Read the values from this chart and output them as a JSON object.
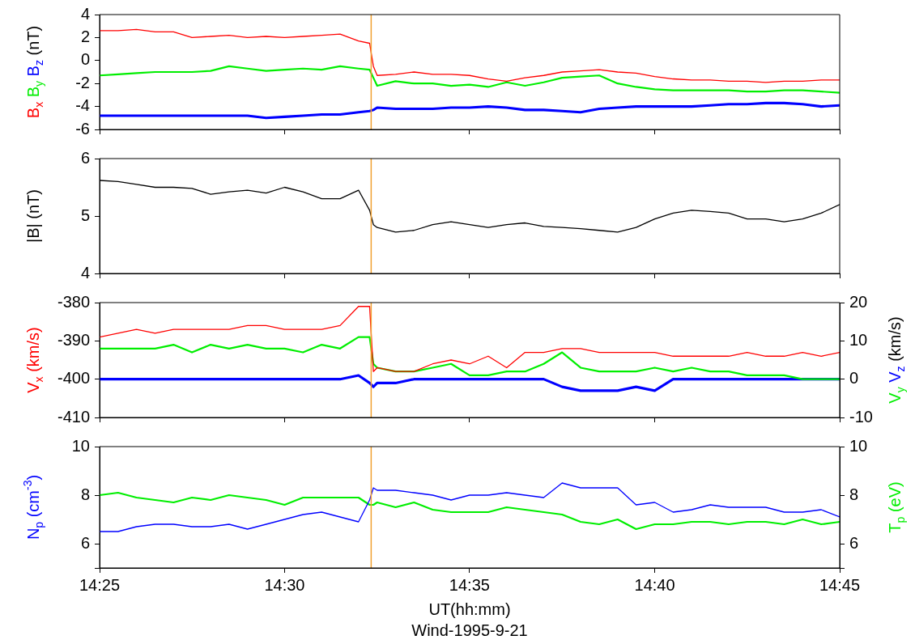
{
  "chart_data": [
    {
      "type": "line",
      "ylabel": "(nT)",
      "tick_labels": "y",
      "x": [
        14.4167,
        14.425,
        14.4333,
        14.4417,
        14.45,
        14.4583,
        14.4667,
        14.475,
        14.4833,
        14.4917,
        14.5,
        14.5083,
        14.5167,
        14.525,
        14.5333,
        14.5383,
        14.54,
        14.5417,
        14.55,
        14.5583,
        14.5667,
        14.575,
        14.5833,
        14.5917,
        14.6,
        14.6083,
        14.6167,
        14.625,
        14.6333,
        14.6417,
        14.65,
        14.6583,
        14.6667,
        14.675,
        14.6833,
        14.6917,
        14.7,
        14.7083,
        14.7167,
        14.725,
        14.7333,
        14.7417,
        14.75
      ],
      "xlim": [
        14.4167,
        14.75
      ],
      "xticks": [
        {
          "value": 14.4167,
          "label": null
        },
        {
          "value": 14.5,
          "label": null
        },
        {
          "value": 14.5833,
          "label": null
        },
        {
          "value": 14.6667,
          "label": null
        },
        {
          "value": 14.75,
          "label": null
        }
      ],
      "ylim": [
        -6,
        4
      ],
      "yticks": [
        -6,
        -4,
        -2,
        0,
        2,
        4
      ],
      "ref_lines": [
        {
          "axis": "x",
          "value": 14.539,
          "color": "#f0a030"
        }
      ],
      "series": [
        {
          "name": "B$_{x}$",
          "color": "#ff0000",
          "values": [
            2.6,
            2.6,
            2.7,
            2.5,
            2.5,
            2.0,
            2.1,
            2.2,
            2.0,
            2.1,
            2.0,
            2.1,
            2.2,
            2.3,
            1.7,
            1.5,
            -0.5,
            -1.3,
            -1.2,
            -1.0,
            -1.2,
            -1.2,
            -1.3,
            -1.6,
            -1.8,
            -1.5,
            -1.3,
            -1.0,
            -0.9,
            -0.8,
            -1.0,
            -1.1,
            -1.4,
            -1.6,
            -1.7,
            -1.7,
            -1.8,
            -1.8,
            -1.9,
            -1.8,
            -1.8,
            -1.7,
            -1.7
          ]
        },
        {
          "name": "B$_{y}$",
          "color": "#00ee00",
          "values": [
            -1.3,
            -1.2,
            -1.1,
            -1.0,
            -1.0,
            -1.0,
            -0.9,
            -0.5,
            -0.7,
            -0.9,
            -0.8,
            -0.7,
            -0.8,
            -0.5,
            -0.7,
            -0.8,
            -1.5,
            -2.2,
            -1.8,
            -2.0,
            -2.0,
            -2.2,
            -2.1,
            -2.3,
            -1.9,
            -2.2,
            -1.9,
            -1.5,
            -1.4,
            -1.3,
            -2.0,
            -2.3,
            -2.5,
            -2.6,
            -2.6,
            -2.6,
            -2.6,
            -2.7,
            -2.7,
            -2.6,
            -2.6,
            -2.7,
            -2.8
          ]
        },
        {
          "name": "B$_{z}$",
          "color": "#0000ff",
          "values": [
            -4.8,
            -4.8,
            -4.8,
            -4.8,
            -4.8,
            -4.8,
            -4.8,
            -4.8,
            -4.8,
            -5.0,
            -4.9,
            -4.8,
            -4.7,
            -4.7,
            -4.5,
            -4.4,
            -4.3,
            -4.1,
            -4.2,
            -4.2,
            -4.2,
            -4.1,
            -4.1,
            -4.0,
            -4.1,
            -4.3,
            -4.3,
            -4.4,
            -4.5,
            -4.2,
            -4.1,
            -4.0,
            -4.0,
            -4.0,
            -4.0,
            -3.9,
            -3.8,
            -3.8,
            -3.7,
            -3.7,
            -3.8,
            -4.0,
            -3.9
          ]
        }
      ]
    },
    {
      "type": "line",
      "ylabel": "(nT)",
      "tick_labels": "y",
      "x": [
        14.4167,
        14.425,
        14.4333,
        14.4417,
        14.45,
        14.4583,
        14.4667,
        14.475,
        14.4833,
        14.4917,
        14.5,
        14.5083,
        14.5167,
        14.525,
        14.5333,
        14.5383,
        14.54,
        14.5417,
        14.55,
        14.5583,
        14.5667,
        14.575,
        14.5833,
        14.5917,
        14.6,
        14.6083,
        14.6167,
        14.625,
        14.6333,
        14.6417,
        14.65,
        14.6583,
        14.6667,
        14.675,
        14.6833,
        14.6917,
        14.7,
        14.7083,
        14.7167,
        14.725,
        14.7333,
        14.7417,
        14.75
      ],
      "xlim": [
        14.4167,
        14.75
      ],
      "xticks": [
        {
          "value": 14.4167,
          "label": null
        },
        {
          "value": 14.5,
          "label": null
        },
        {
          "value": 14.5833,
          "label": null
        },
        {
          "value": 14.6667,
          "label": null
        },
        {
          "value": 14.75,
          "label": null
        }
      ],
      "ylim": [
        4,
        6
      ],
      "yticks": [
        4,
        5,
        6
      ],
      "ref_lines": [
        {
          "axis": "x",
          "value": 14.539,
          "color": "#f0a030"
        }
      ],
      "series": [
        {
          "name": "|B|",
          "color": "#000000",
          "values": [
            5.62,
            5.6,
            5.55,
            5.5,
            5.5,
            5.48,
            5.38,
            5.42,
            5.45,
            5.4,
            5.5,
            5.42,
            5.3,
            5.3,
            5.45,
            5.1,
            4.85,
            4.8,
            4.72,
            4.75,
            4.85,
            4.9,
            4.85,
            4.8,
            4.85,
            4.88,
            4.82,
            4.8,
            4.78,
            4.75,
            4.72,
            4.8,
            4.95,
            5.05,
            5.1,
            5.08,
            5.05,
            4.95,
            4.95,
            4.9,
            4.95,
            5.05,
            5.2
          ]
        }
      ]
    },
    {
      "type": "line",
      "ylabel": "(km/s)",
      "y2label": "(km/s)",
      "tick_labels": "y",
      "x": [
        14.4167,
        14.425,
        14.4333,
        14.4417,
        14.45,
        14.4583,
        14.4667,
        14.475,
        14.4833,
        14.4917,
        14.5,
        14.5083,
        14.5167,
        14.525,
        14.5333,
        14.5383,
        14.54,
        14.5417,
        14.55,
        14.5583,
        14.5667,
        14.575,
        14.5833,
        14.5917,
        14.6,
        14.6083,
        14.6167,
        14.625,
        14.6333,
        14.6417,
        14.65,
        14.6583,
        14.6667,
        14.675,
        14.6833,
        14.6917,
        14.7,
        14.7083,
        14.7167,
        14.725,
        14.7333,
        14.7417,
        14.75
      ],
      "xlim": [
        14.4167,
        14.75
      ],
      "xticks": [
        {
          "value": 14.4167,
          "label": null
        },
        {
          "value": 14.5,
          "label": null
        },
        {
          "value": 14.5833,
          "label": null
        },
        {
          "value": 14.6667,
          "label": null
        },
        {
          "value": 14.75,
          "label": null
        }
      ],
      "ylim": [
        -410,
        -380
      ],
      "yticks": [
        -410,
        -400,
        -390,
        -380
      ],
      "y2lim": [
        -10,
        20
      ],
      "y2ticks": [
        -10,
        0,
        10,
        20
      ],
      "ref_lines": [
        {
          "axis": "x",
          "value": 14.539,
          "color": "#f0a030"
        }
      ],
      "series": [
        {
          "name": "V$_{x}$",
          "color": "#ff0000",
          "values": [
            -389,
            -388,
            -387,
            -388,
            -387,
            -387,
            -387,
            -387,
            -386,
            -386,
            -387,
            -387,
            -387,
            -386,
            -381,
            -381,
            -398,
            -397,
            -398,
            -398,
            -396,
            -395,
            -396,
            -394,
            -397,
            -393,
            -393,
            -392,
            -392,
            -393,
            -393,
            -393,
            -393,
            -394,
            -394,
            -394,
            -394,
            -393,
            -394,
            -394,
            -393,
            -394,
            -393
          ]
        },
        {
          "name": "V$_{y}$",
          "color": "#00ee00",
          "axis": "y2",
          "values": [
            8,
            8,
            8,
            8,
            9,
            7,
            9,
            8,
            9,
            8,
            8,
            7,
            9,
            8,
            11,
            11,
            4,
            3,
            2,
            2,
            3,
            4,
            1,
            1,
            2,
            2,
            4,
            7,
            3,
            2,
            2,
            2,
            3,
            2,
            3,
            2,
            2,
            1,
            1,
            1,
            0,
            0,
            0
          ]
        },
        {
          "name": "V$_{z}$",
          "color": "#0000ff",
          "axis": "y2",
          "values": [
            0,
            0,
            0,
            0,
            0,
            0,
            0,
            0,
            0,
            0,
            0,
            0,
            0,
            0,
            1,
            -1,
            -2,
            -1,
            -1,
            0,
            0,
            0,
            0,
            0,
            0,
            0,
            0,
            -2,
            -3,
            -3,
            -3,
            -2,
            -3,
            0,
            0,
            0,
            0,
            0,
            0,
            0,
            0,
            0,
            0
          ]
        }
      ]
    },
    {
      "type": "line",
      "ylabel": "(cm$^{-3}$)",
      "y2label": "(eV)",
      "xlabel": "UT(hh:mm)",
      "annotations": [
        "Wind-1995-9-21"
      ],
      "x": [
        14.4167,
        14.425,
        14.4333,
        14.4417,
        14.45,
        14.4583,
        14.4667,
        14.475,
        14.4833,
        14.4917,
        14.5,
        14.5083,
        14.5167,
        14.525,
        14.5333,
        14.5383,
        14.54,
        14.5417,
        14.55,
        14.5583,
        14.5667,
        14.575,
        14.5833,
        14.5917,
        14.6,
        14.6083,
        14.6167,
        14.625,
        14.6333,
        14.6417,
        14.65,
        14.6583,
        14.6667,
        14.675,
        14.6833,
        14.6917,
        14.7,
        14.7083,
        14.7167,
        14.725,
        14.7333,
        14.7417,
        14.75
      ],
      "xlim": [
        14.4167,
        14.75
      ],
      "xticks": [
        {
          "value": 14.4167,
          "label": "14:25"
        },
        {
          "value": 14.5,
          "label": "14:30"
        },
        {
          "value": 14.5833,
          "label": "14:35"
        },
        {
          "value": 14.6667,
          "label": "14:40"
        },
        {
          "value": 14.75,
          "label": "14:45"
        }
      ],
      "ylim": [
        5,
        10
      ],
      "yticks": [
        {
          "value": 5,
          "label": null
        },
        6,
        8,
        10
      ],
      "y2lim": [
        5,
        10
      ],
      "y2ticks": [
        {
          "value": 5,
          "label": null
        },
        6,
        8,
        10
      ],
      "ref_lines": [
        {
          "axis": "x",
          "value": 14.539,
          "color": "#f0a030"
        }
      ],
      "series": [
        {
          "name": "N$_{p}$",
          "color": "#0000ff",
          "values": [
            6.5,
            6.5,
            6.7,
            6.8,
            6.8,
            6.7,
            6.7,
            6.8,
            6.6,
            6.8,
            7.0,
            7.2,
            7.3,
            7.1,
            6.9,
            7.8,
            8.3,
            8.2,
            8.2,
            8.1,
            8.0,
            7.8,
            8.0,
            8.0,
            8.1,
            8.0,
            7.9,
            8.5,
            8.3,
            8.3,
            8.3,
            7.6,
            7.7,
            7.3,
            7.4,
            7.6,
            7.5,
            7.5,
            7.5,
            7.3,
            7.3,
            7.4,
            7.1
          ]
        },
        {
          "name": "T$_{p}$",
          "color": "#00ee00",
          "axis": "y2",
          "values": [
            8.0,
            8.1,
            7.9,
            7.8,
            7.7,
            7.9,
            7.8,
            8.0,
            7.9,
            7.8,
            7.6,
            7.9,
            7.9,
            7.9,
            7.9,
            7.6,
            7.6,
            7.7,
            7.5,
            7.7,
            7.4,
            7.3,
            7.3,
            7.3,
            7.5,
            7.4,
            7.3,
            7.2,
            6.9,
            6.8,
            7.0,
            6.6,
            6.8,
            6.8,
            6.9,
            6.9,
            6.8,
            6.9,
            6.9,
            6.8,
            7.0,
            6.8,
            6.9
          ]
        }
      ]
    }
  ]
}
